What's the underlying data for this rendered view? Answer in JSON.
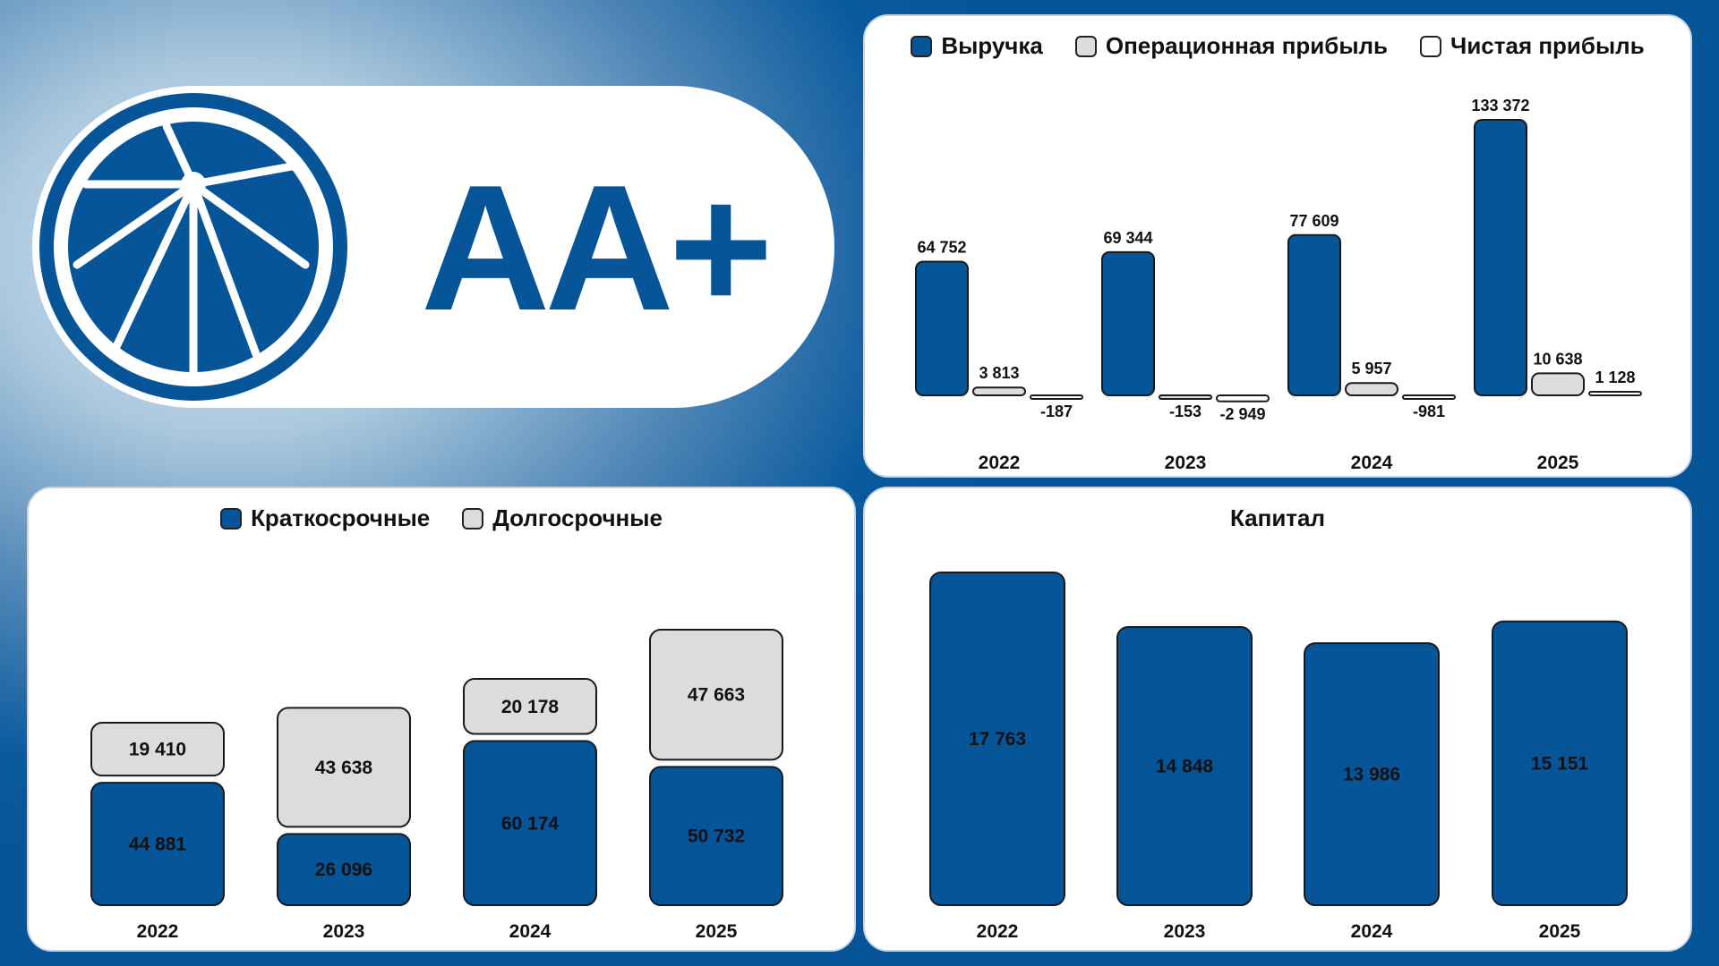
{
  "rating": "AA+",
  "colors": {
    "primary": "#075599",
    "secondary": "#dcdcdc",
    "tertiary": "#ffffff"
  },
  "chart_data": [
    {
      "type": "bar",
      "categories": [
        "2022",
        "2023",
        "2024",
        "2025"
      ],
      "series": [
        {
          "name": "Выручка",
          "values": [
            64752,
            69344,
            77609,
            133372
          ],
          "labels": [
            "64 752",
            "69 344",
            "77 609",
            "133 372"
          ]
        },
        {
          "name": "Операционная прибыль",
          "values": [
            3813,
            -153,
            5957,
            10638
          ],
          "labels": [
            "3 813",
            "-153",
            "5 957",
            "10 638"
          ]
        },
        {
          "name": "Чистая прибыль",
          "values": [
            -187,
            -2949,
            -981,
            1128
          ],
          "labels": [
            "-187",
            "-2 949",
            "-981",
            "1 128"
          ]
        }
      ]
    },
    {
      "type": "bar",
      "stacked": true,
      "categories": [
        "2022",
        "2023",
        "2024",
        "2025"
      ],
      "series": [
        {
          "name": "Краткосрочные",
          "values": [
            44881,
            26096,
            60174,
            50732
          ],
          "labels": [
            "44 881",
            "26 096",
            "60 174",
            "50 732"
          ]
        },
        {
          "name": "Долгосрочные",
          "values": [
            19410,
            43638,
            20178,
            47663
          ],
          "labels": [
            "19 410",
            "43 638",
            "20 178",
            "47 663"
          ]
        }
      ]
    },
    {
      "type": "bar",
      "title": "Капитал",
      "categories": [
        "2022",
        "2023",
        "2024",
        "2025"
      ],
      "values": [
        17763,
        14848,
        13986,
        15151
      ],
      "labels": [
        "17 763",
        "14 848",
        "13 986",
        "15 151"
      ]
    }
  ]
}
